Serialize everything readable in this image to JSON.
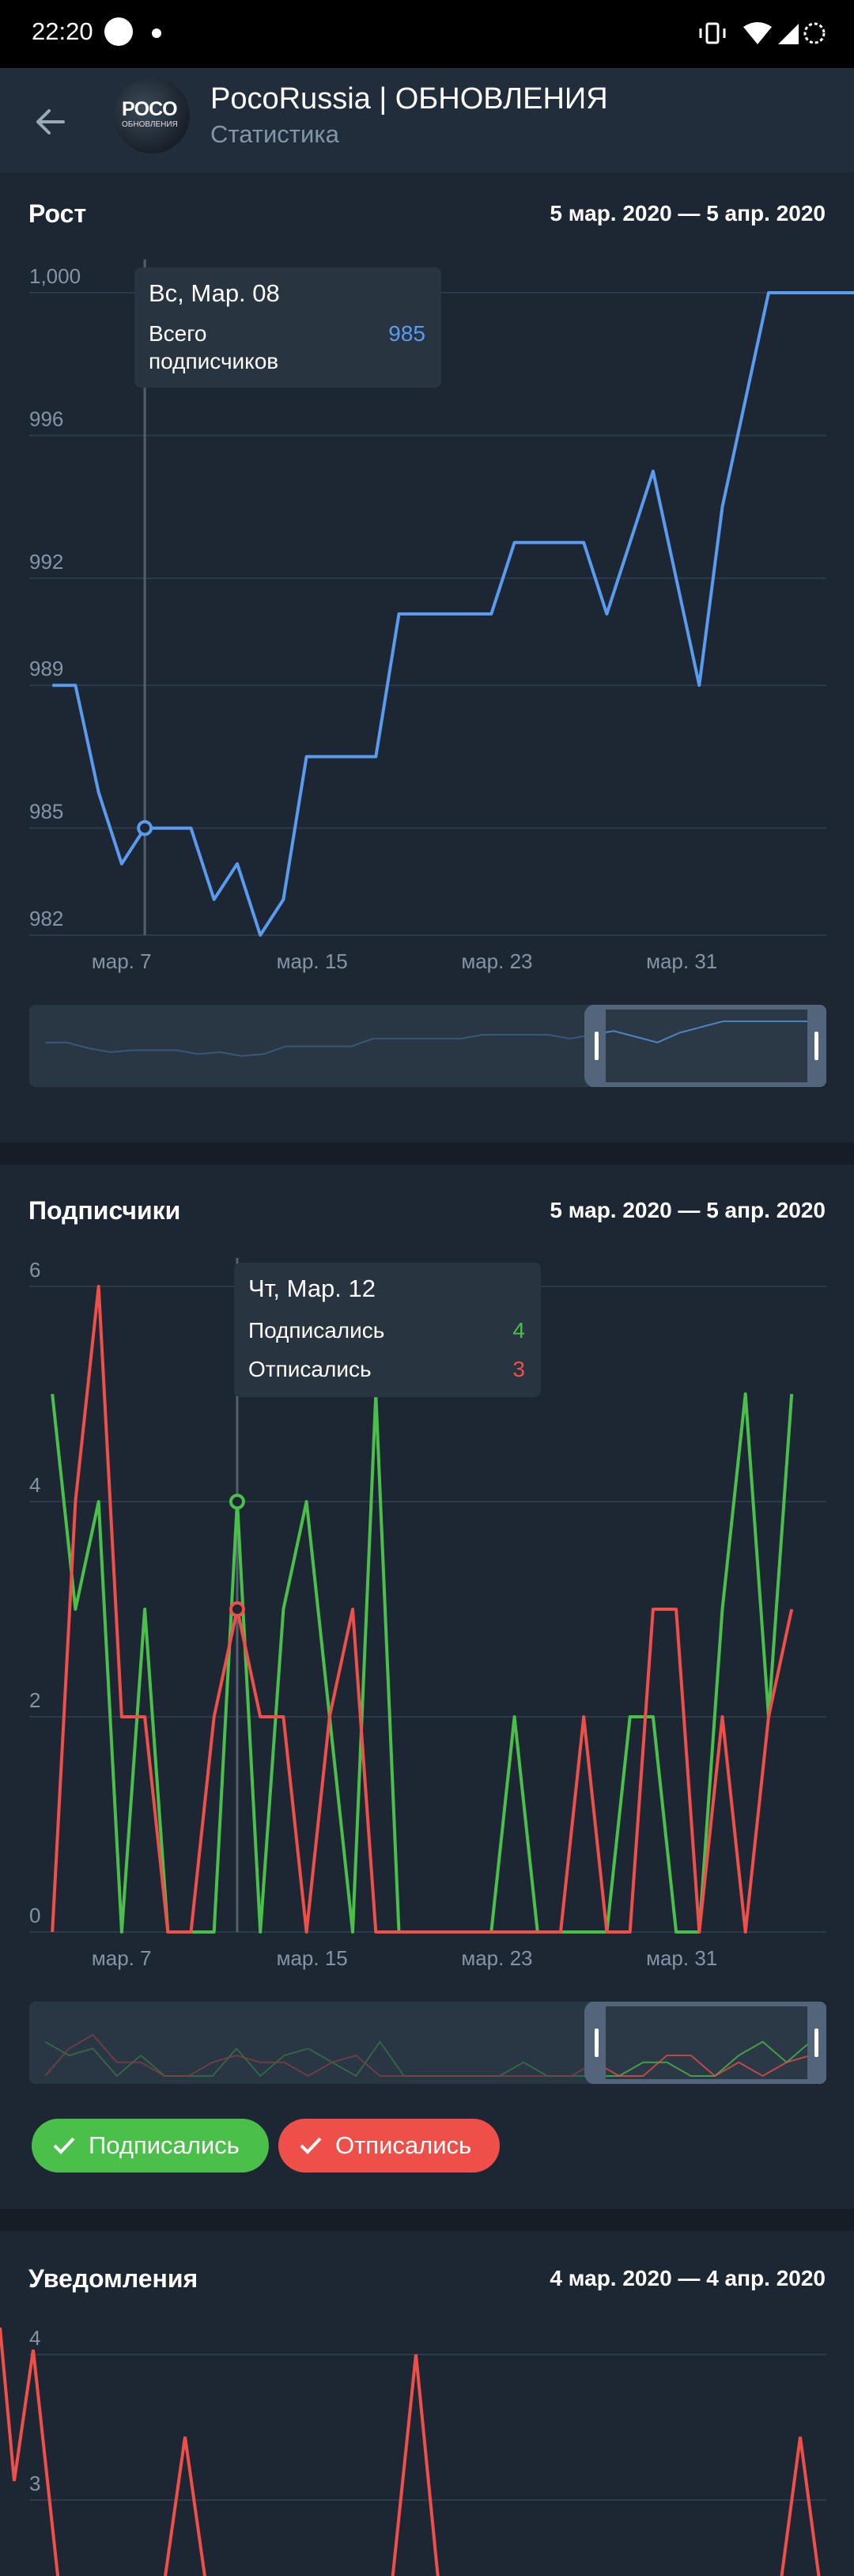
{
  "status_bar": {
    "time": "22:20"
  },
  "header": {
    "title": "PocoRussia | ОБНОВЛЕНИЯ",
    "subtitle": "Статистика",
    "avatar_text": "POCO",
    "avatar_subtext": "ОБНОВЛЕНИЯ"
  },
  "colors": {
    "background": "#1d2733",
    "header": "#212d3b",
    "growth_line": "#5b9bef",
    "subscribed": "#4ac04b",
    "unsubscribed": "#ee4f48",
    "axis_text": "#8494a6"
  },
  "growth": {
    "title": "Рост",
    "range": "5 мар. 2020 — 5 апр. 2020",
    "tooltip": {
      "date": "Вс, Мар. 08",
      "label": "Всего подписчиков",
      "value": "985"
    }
  },
  "subscribers": {
    "title": "Подписчики",
    "range": "5 мар. 2020 — 5 апр. 2020",
    "tooltip": {
      "date": "Чт, Мар. 12",
      "joined_label": "Подписались",
      "joined_value": "4",
      "left_label": "Отписались",
      "left_value": "3"
    },
    "toggles": [
      "Подписались",
      "Отписались"
    ]
  },
  "notifications": {
    "title": "Уведомления",
    "range": "4 мар. 2020 — 4 апр. 2020"
  },
  "chart_data": [
    {
      "type": "line",
      "title": "Рост",
      "x_ticks": [
        "мар. 7",
        "мар. 15",
        "мар. 23",
        "мар. 31"
      ],
      "y_ticks": [
        "982",
        "985",
        "989",
        "992",
        "996",
        "1,000"
      ],
      "ylim": [
        982,
        1000
      ],
      "x": [
        4,
        5,
        6,
        7,
        8,
        9,
        10,
        11,
        12,
        13,
        14,
        15,
        16,
        17,
        18,
        19,
        20,
        21,
        22,
        23,
        24,
        25,
        26,
        27,
        28,
        29,
        30,
        31,
        32,
        33,
        34,
        35,
        36,
        37,
        38,
        39
      ],
      "series": [
        {
          "name": "Всего подписчиков",
          "color": "#5b9bef",
          "values": [
            989,
            989,
            986,
            984,
            985,
            985,
            985,
            983,
            984,
            982,
            983,
            987,
            987,
            987,
            987,
            991,
            991,
            991,
            991,
            991,
            993,
            993,
            993,
            993,
            991,
            993,
            995,
            992,
            989,
            994,
            997,
            1000,
            1000,
            1000,
            1000,
            1000
          ]
        }
      ],
      "highlight_index": 4,
      "grid": true
    },
    {
      "type": "line",
      "title": "Подписчики",
      "x_ticks": [
        "мар. 7",
        "мар. 15",
        "мар. 23",
        "мар. 31"
      ],
      "y_ticks": [
        "0",
        "2",
        "4",
        "6"
      ],
      "ylim": [
        0,
        6
      ],
      "x": [
        4,
        5,
        6,
        7,
        8,
        9,
        10,
        11,
        12,
        13,
        14,
        15,
        16,
        17,
        18,
        19,
        20,
        21,
        22,
        23,
        24,
        25,
        26,
        27,
        28,
        29,
        30,
        31,
        32,
        33,
        34,
        35,
        36
      ],
      "series": [
        {
          "name": "Подписались",
          "color": "#4ac04b",
          "values": [
            5,
            3,
            4,
            0,
            3,
            0,
            0,
            0,
            4,
            0,
            3,
            4,
            2,
            0,
            5,
            0,
            0,
            0,
            0,
            0,
            2,
            0,
            0,
            0,
            0,
            2,
            2,
            0,
            0,
            3,
            5,
            2,
            5
          ]
        },
        {
          "name": "Отписались",
          "color": "#ee4f48",
          "values": [
            0,
            4,
            6,
            2,
            2,
            0,
            0,
            2,
            3,
            2,
            2,
            0,
            2,
            3,
            0,
            0,
            0,
            0,
            0,
            0,
            0,
            0,
            0,
            2,
            0,
            0,
            3,
            3,
            0,
            2,
            0,
            2,
            3
          ]
        }
      ],
      "highlight_index": 8,
      "grid": true
    },
    {
      "type": "line",
      "title": "Уведомления",
      "y_ticks": [
        "3",
        "4"
      ],
      "series": [
        {
          "name": "",
          "color": "#ee4f48"
        }
      ],
      "grid": true
    }
  ]
}
